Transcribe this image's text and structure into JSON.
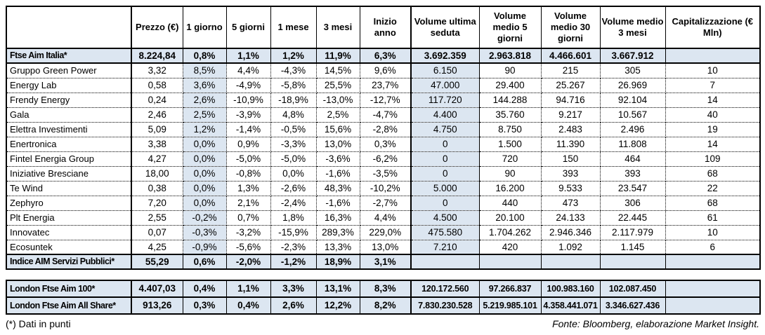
{
  "colors": {
    "highlight_blue": "#dce6f1",
    "border_black": "#000000"
  },
  "header": {
    "columns": [
      "",
      "Prezzo (€)",
      "1 giorno",
      "5 giorni",
      "1 mese",
      "3 mesi",
      "Inizio anno",
      "Volume ultima seduta",
      "Volume medio 5 giorni",
      "Volume medio 30 giorni",
      "Volume medio 3 mesi",
      "Capitalizzazione (€ Mln)"
    ]
  },
  "main_table": {
    "rows": [
      {
        "name": "Ftse Aim Italia*",
        "type": "index",
        "cells": [
          "8.224,84",
          "0,8%",
          "1,1%",
          "1,2%",
          "11,9%",
          "6,3%",
          "3.692.359",
          "2.963.818",
          "4.466.601",
          "3.667.912",
          ""
        ]
      },
      {
        "name": "Gruppo Green Power",
        "type": "stock",
        "cells": [
          "3,32",
          "8,5%",
          "4,4%",
          "-4,3%",
          "14,5%",
          "9,6%",
          "6.150",
          "90",
          "215",
          "305",
          "10"
        ]
      },
      {
        "name": "Energy Lab",
        "type": "stock",
        "cells": [
          "0,58",
          "3,6%",
          "-4,9%",
          "-5,8%",
          "25,5%",
          "23,7%",
          "47.000",
          "29.400",
          "25.267",
          "26.969",
          "7"
        ]
      },
      {
        "name": "Frendy Energy",
        "type": "stock",
        "cells": [
          "0,24",
          "2,6%",
          "-10,9%",
          "-18,9%",
          "-13,0%",
          "-12,7%",
          "117.720",
          "144.288",
          "94.716",
          "92.104",
          "14"
        ]
      },
      {
        "name": "Gala",
        "type": "stock",
        "cells": [
          "2,46",
          "2,5%",
          "-3,9%",
          "4,8%",
          "2,5%",
          "-4,7%",
          "4.400",
          "35.760",
          "9.217",
          "10.567",
          "40"
        ]
      },
      {
        "name": "Elettra Investimenti",
        "type": "stock",
        "cells": [
          "5,09",
          "1,2%",
          "-1,4%",
          "-0,5%",
          "15,6%",
          "-2,8%",
          "4.750",
          "8.750",
          "2.483",
          "2.496",
          "19"
        ]
      },
      {
        "name": "Enertronica",
        "type": "stock",
        "cells": [
          "3,38",
          "0,0%",
          "0,9%",
          "-3,3%",
          "13,0%",
          "0,3%",
          "0",
          "1.500",
          "11.390",
          "11.808",
          "14"
        ]
      },
      {
        "name": "Fintel Energia Group",
        "type": "stock",
        "cells": [
          "4,27",
          "0,0%",
          "-5,0%",
          "-5,0%",
          "-3,6%",
          "-6,2%",
          "0",
          "720",
          "150",
          "464",
          "109"
        ]
      },
      {
        "name": "Iniziative Bresciane",
        "type": "stock",
        "cells": [
          "18,00",
          "0,0%",
          "-0,8%",
          "0,0%",
          "-1,6%",
          "-3,5%",
          "0",
          "90",
          "393",
          "393",
          "68"
        ]
      },
      {
        "name": "Te Wind",
        "type": "stock",
        "cells": [
          "0,38",
          "0,0%",
          "1,3%",
          "-2,6%",
          "48,3%",
          "-10,2%",
          "5.000",
          "16.200",
          "9.533",
          "23.547",
          "22"
        ]
      },
      {
        "name": "Zephyro",
        "type": "stock",
        "cells": [
          "7,20",
          "0,0%",
          "2,1%",
          "-2,4%",
          "-1,6%",
          "-2,7%",
          "0",
          "440",
          "473",
          "306",
          "68"
        ]
      },
      {
        "name": "Plt Energia",
        "type": "stock",
        "cells": [
          "2,55",
          "-0,2%",
          "0,7%",
          "1,8%",
          "16,3%",
          "4,4%",
          "4.500",
          "20.100",
          "24.133",
          "22.445",
          "61"
        ]
      },
      {
        "name": "Innovatec",
        "type": "stock",
        "cells": [
          "0,07",
          "-0,3%",
          "-3,2%",
          "-15,9%",
          "289,3%",
          "229,0%",
          "475.580",
          "1.704.262",
          "2.946.346",
          "2.117.979",
          "10"
        ]
      },
      {
        "name": "Ecosuntek",
        "type": "stock",
        "cells": [
          "4,25",
          "-0,9%",
          "-5,6%",
          "-2,3%",
          "13,3%",
          "13,0%",
          "7.210",
          "420",
          "1.092",
          "1.145",
          "6"
        ]
      },
      {
        "name": "Indice AIM Servizi Pubblici*",
        "type": "index",
        "cells": [
          "55,29",
          "0,6%",
          "-2,0%",
          "-1,2%",
          "18,9%",
          "3,1%",
          "",
          "",
          "",
          "",
          ""
        ]
      }
    ]
  },
  "london_table": {
    "rows": [
      {
        "name": "London Ftse Aim 100*",
        "type": "index",
        "cells": [
          "4.407,03",
          "0,4%",
          "1,1%",
          "3,3%",
          "13,1%",
          "8,3%",
          "120.172.560",
          "97.266.837",
          "100.983.160",
          "102.087.450",
          ""
        ]
      },
      {
        "name": "London Ftse Aim All Share*",
        "type": "index",
        "cells": [
          "913,26",
          "0,3%",
          "0,4%",
          "2,6%",
          "12,2%",
          "8,2%",
          "7.830.230.528",
          "5.219.985.101",
          "4.358.441.071",
          "3.346.627.436",
          ""
        ]
      }
    ]
  },
  "footer": {
    "note": "(*) Dati in punti",
    "source": "Fonte: Bloomberg, elaborazione Market Insight."
  }
}
